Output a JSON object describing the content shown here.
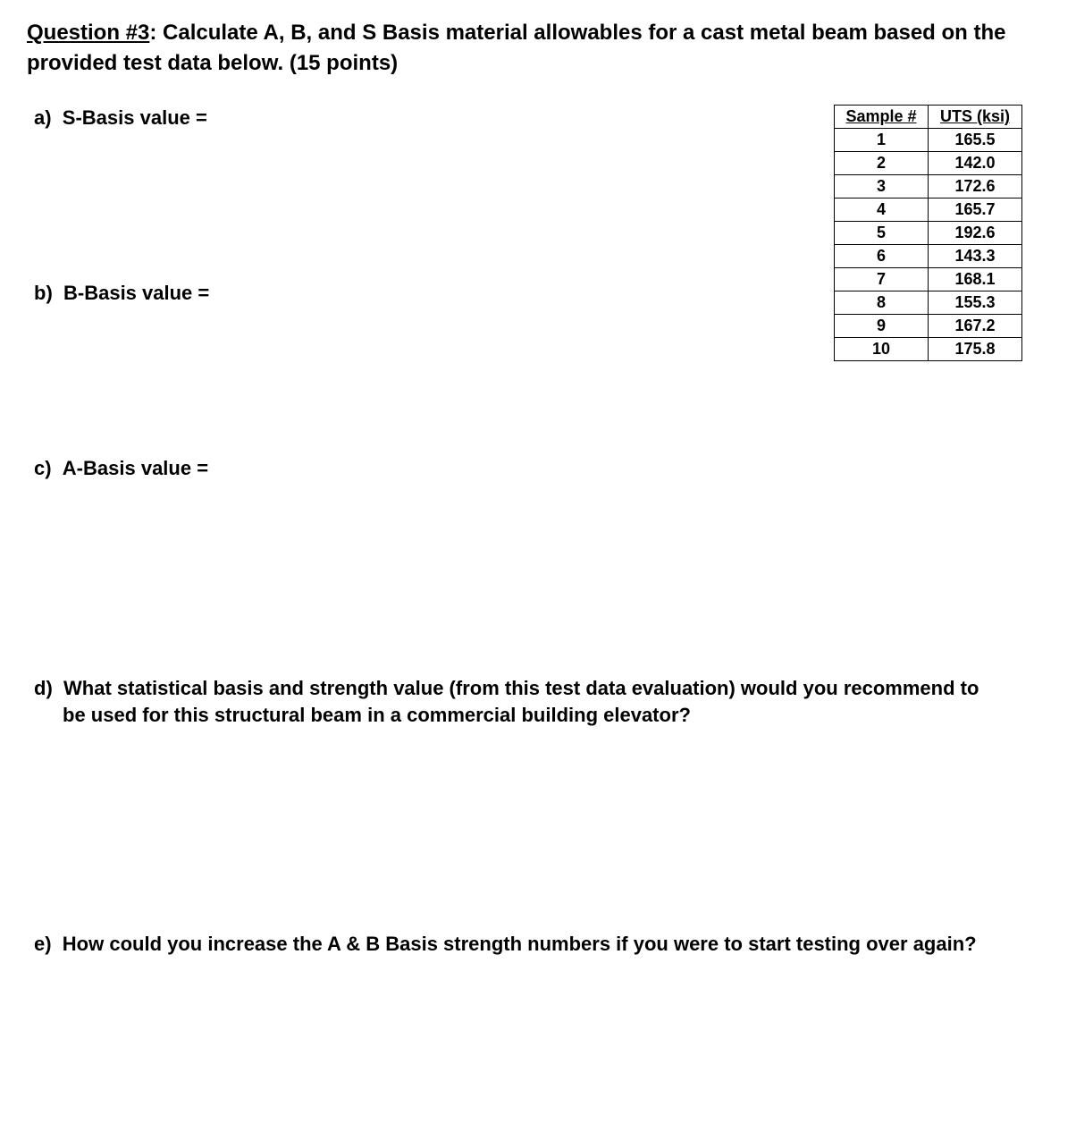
{
  "title": {
    "prefix": "Question #3",
    "text": ": Calculate A, B, and S Basis material allowables for a cast metal beam based on the provided test data below. (15 points)"
  },
  "prompts": {
    "a": {
      "letter": "a)",
      "text": "S-Basis value ="
    },
    "b": {
      "letter": "b)",
      "text": "B-Basis value ="
    },
    "c": {
      "letter": "c)",
      "text": "A-Basis value ="
    },
    "d": {
      "letter": "d)",
      "text": "What statistical basis and strength value (from this test data evaluation) would you recommend to be used for this structural beam in a commercial building elevator?"
    },
    "e": {
      "letter": "e)",
      "text": "How could you increase the A & B Basis strength numbers if you were to start testing over again?"
    }
  },
  "table": {
    "headers": {
      "col1": "Sample #",
      "col2": "UTS (ksi)"
    },
    "rows": [
      {
        "sample": "1",
        "uts": "165.5"
      },
      {
        "sample": "2",
        "uts": "142.0"
      },
      {
        "sample": "3",
        "uts": "172.6"
      },
      {
        "sample": "4",
        "uts": "165.7"
      },
      {
        "sample": "5",
        "uts": "192.6"
      },
      {
        "sample": "6",
        "uts": "143.3"
      },
      {
        "sample": "7",
        "uts": "168.1"
      },
      {
        "sample": "8",
        "uts": "155.3"
      },
      {
        "sample": "9",
        "uts": "167.2"
      },
      {
        "sample": "10",
        "uts": "175.8"
      }
    ],
    "style": {
      "border_color": "#000000",
      "header_fontsize": 18,
      "cell_fontsize": 18,
      "font_weight": "bold"
    }
  },
  "colors": {
    "background": "#ffffff",
    "text": "#000000"
  }
}
